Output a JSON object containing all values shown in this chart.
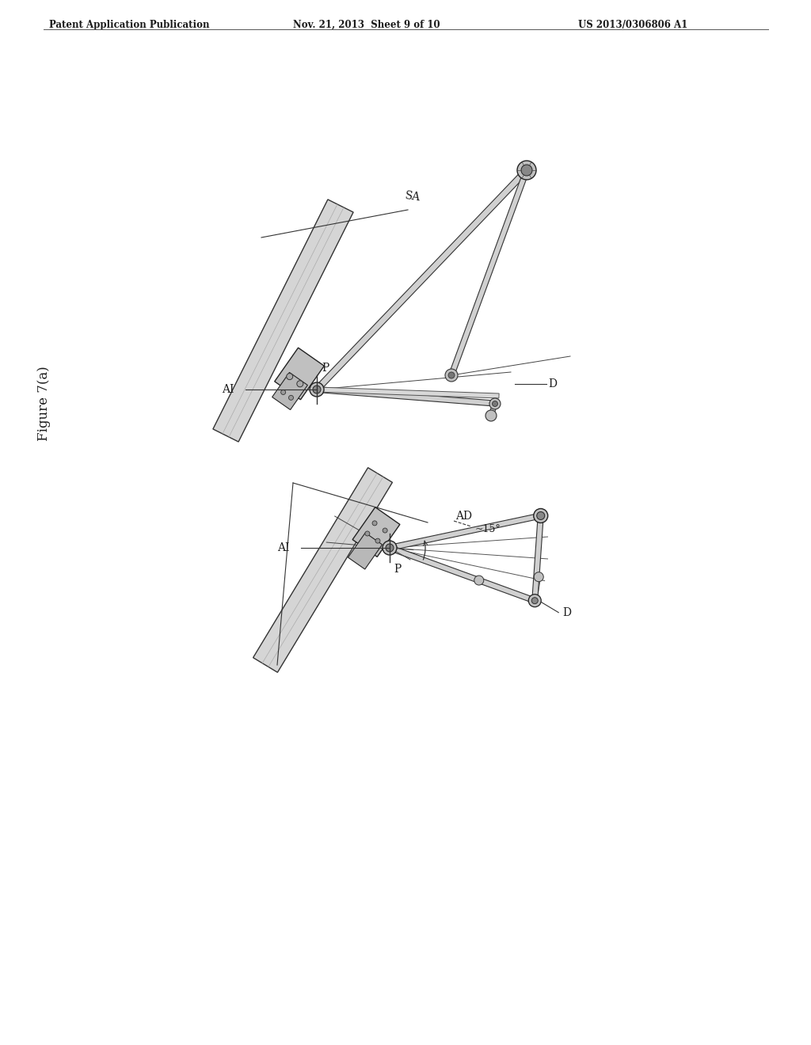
{
  "header_left": "Patent Application Publication",
  "header_mid": "Nov. 21, 2013  Sheet 9 of 10",
  "header_right": "US 2013/0306806 A1",
  "figure_label": "Figure 7(a)",
  "bg_color": "#ffffff",
  "lc": "#2a2a2a",
  "tc": "#1a1a1a",
  "gray_light": "#c8c8c8",
  "gray_mid": "#888888",
  "gray_dark": "#444444",
  "tube_face": "#d8d8d8",
  "tube_edge": "#333333",
  "bracket_face": "#b8b8b8",
  "bracket_edge": "#222222",
  "rail_face": "#d0d0d0",
  "rail_edge": "#333333"
}
